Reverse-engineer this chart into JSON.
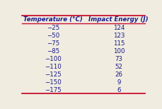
{
  "headers": [
    "Temperature (°C)",
    "Impact Energy (J)"
  ],
  "temperatures": [
    "−25",
    "−50",
    "−75",
    "−85",
    "−100",
    "−110",
    "−125",
    "−150",
    "−175"
  ],
  "energies": [
    "124",
    "123",
    "115",
    "100",
    "73",
    "52",
    "26",
    "9",
    "6"
  ],
  "bg_color": "#f0ece0",
  "line_color": "#c8102e",
  "text_color": "#1a1a8c",
  "header_text_color": "#1a1a8c",
  "figsize": [
    2.3,
    1.54
  ],
  "dpi": 100
}
